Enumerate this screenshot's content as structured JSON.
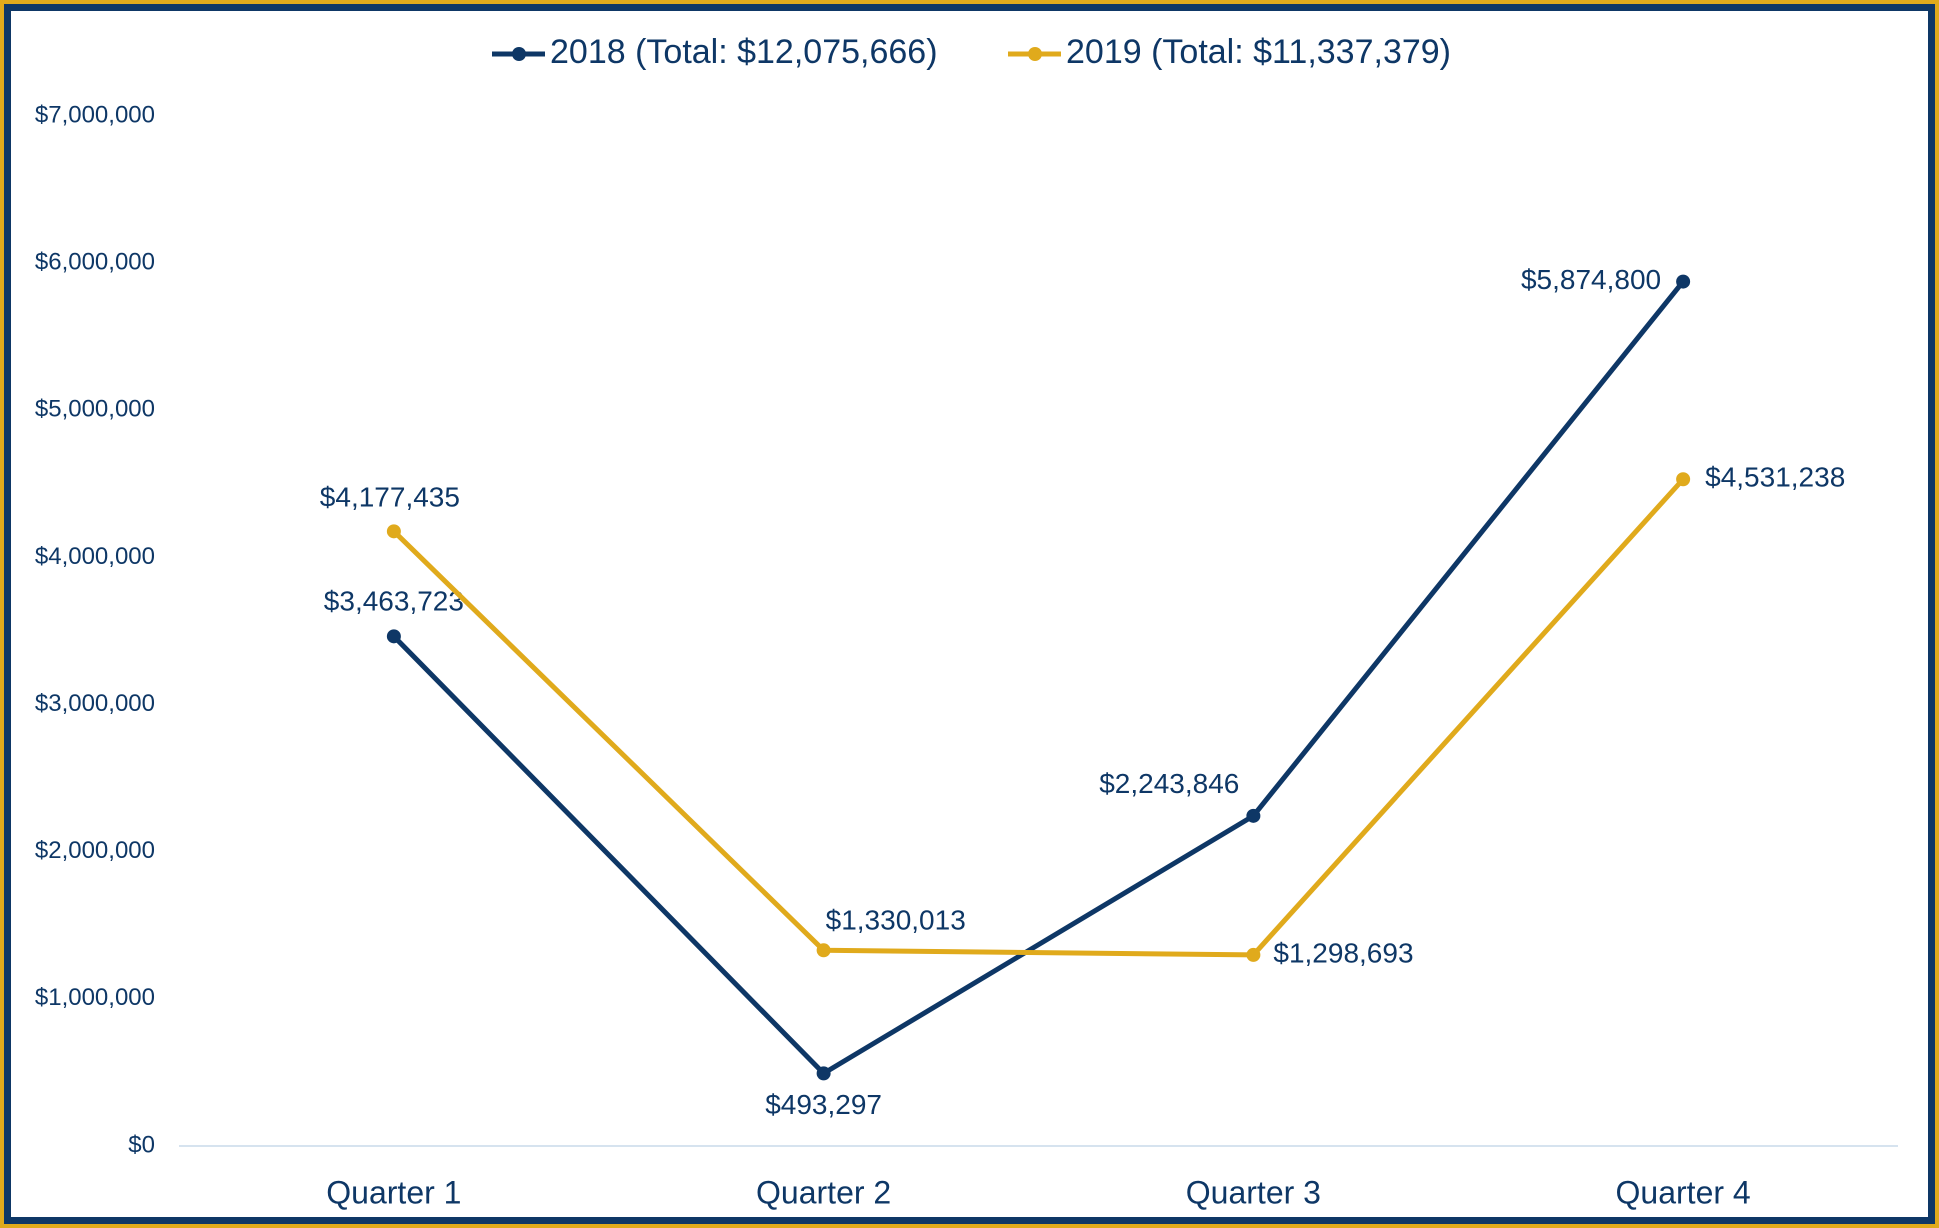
{
  "chart_data": {
    "type": "line",
    "categories": [
      "Quarter 1",
      "Quarter 2",
      "Quarter 3",
      "Quarter 4"
    ],
    "series": [
      {
        "name": "2018 (Total: $12,075,666)",
        "color": "#0e3766",
        "values": [
          3463723,
          493297,
          2243846,
          5874800
        ],
        "value_labels": [
          "$3,463,723",
          "$493,297",
          "$2,243,846",
          "$5,874,800"
        ]
      },
      {
        "name": "2019 (Total: $11,337,379)",
        "color": "#e0aa1c",
        "values": [
          4177435,
          1330013,
          1298693,
          4531238
        ],
        "value_labels": [
          "$4,177,435",
          "$1,330,013",
          "$1,298,693",
          "$4,531,238"
        ]
      }
    ],
    "ylim": [
      0,
      7000000
    ],
    "yticks": [
      {
        "value": 0,
        "label": "$0"
      },
      {
        "value": 1000000,
        "label": "$1,000,000"
      },
      {
        "value": 2000000,
        "label": "$2,000,000"
      },
      {
        "value": 3000000,
        "label": "$3,000,000"
      },
      {
        "value": 4000000,
        "label": "$4,000,000"
      },
      {
        "value": 5000000,
        "label": "$5,000,000"
      },
      {
        "value": 6000000,
        "label": "$6,000,000"
      },
      {
        "value": 7000000,
        "label": "$7,000,000"
      }
    ],
    "grid": false,
    "legend": "top"
  }
}
